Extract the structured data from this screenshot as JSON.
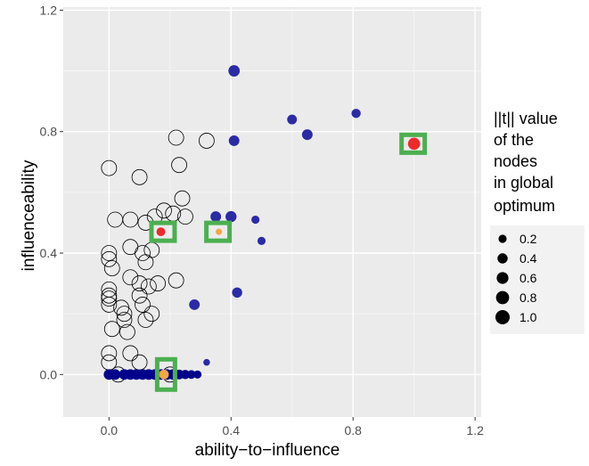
{
  "chart_data": {
    "type": "scatter",
    "xlabel": "ability−to−influence",
    "ylabel": "influenceability",
    "xlim": [
      -0.15,
      1.22
    ],
    "ylim": [
      -0.14,
      1.21
    ],
    "xticks": [
      0.0,
      0.4,
      0.8,
      1.2
    ],
    "xtick_labels": [
      "0.0",
      "0.4",
      "0.8",
      "1.2"
    ],
    "yticks": [
      0.0,
      0.4,
      0.8,
      1.2
    ],
    "ytick_labels": [
      "0.0",
      "0.4",
      "0.8",
      "1.2"
    ],
    "grid": true,
    "panel_background": "#ebebeb",
    "legend": {
      "title_lines": [
        "||t|| value",
        "of the",
        "nodes",
        "in global",
        "optimum"
      ],
      "entries": [
        {
          "label": "0.2",
          "size": 0.2
        },
        {
          "label": "0.4",
          "size": 0.4
        },
        {
          "label": "0.6",
          "size": 0.6
        },
        {
          "label": "0.8",
          "size": 0.8
        },
        {
          "label": "1.0",
          "size": 1.0
        }
      ],
      "placement": "right"
    },
    "colors": {
      "open_circle": "#000000",
      "blue": "#2b2ba6",
      "navy": "#00008b",
      "red": "#ee2a2a",
      "orange": "#f4a742",
      "highlight": "#4caf50"
    },
    "open_points": [
      [
        0.0,
        0.68
      ],
      [
        0.02,
        0.51
      ],
      [
        0.1,
        0.65
      ],
      [
        0.15,
        0.52
      ],
      [
        0.18,
        0.54
      ],
      [
        0.21,
        0.53
      ],
      [
        0.07,
        0.51
      ],
      [
        0.12,
        0.5
      ],
      [
        0.24,
        0.58
      ],
      [
        0.25,
        0.52
      ],
      [
        0.22,
        0.78
      ],
      [
        0.32,
        0.77
      ],
      [
        0.23,
        0.69
      ],
      [
        0.0,
        0.4
      ],
      [
        0.0,
        0.38
      ],
      [
        0.01,
        0.35
      ],
      [
        0.07,
        0.42
      ],
      [
        0.11,
        0.4
      ],
      [
        0.14,
        0.41
      ],
      [
        0.12,
        0.37
      ],
      [
        0.07,
        0.32
      ],
      [
        0.1,
        0.3
      ],
      [
        0.13,
        0.29
      ],
      [
        0.16,
        0.3
      ],
      [
        0.22,
        0.31
      ],
      [
        0.0,
        0.28
      ],
      [
        0.0,
        0.26
      ],
      [
        0.0,
        0.25
      ],
      [
        0.0,
        0.23
      ],
      [
        0.1,
        0.26
      ],
      [
        0.11,
        0.23
      ],
      [
        0.14,
        0.2
      ],
      [
        0.05,
        0.2
      ],
      [
        0.05,
        0.18
      ],
      [
        0.06,
        0.14
      ],
      [
        0.01,
        0.15
      ],
      [
        0.04,
        0.22
      ],
      [
        0.12,
        0.18
      ],
      [
        0.0,
        0.07
      ],
      [
        0.0,
        0.04
      ],
      [
        0.07,
        0.07
      ],
      [
        0.1,
        0.04
      ],
      [
        0.03,
        0.0
      ],
      [
        0.2,
        0.0
      ]
    ],
    "blue_points": [
      {
        "x": 0.41,
        "y": 1.0,
        "size": 0.55
      },
      {
        "x": 0.6,
        "y": 0.84,
        "size": 0.35
      },
      {
        "x": 0.81,
        "y": 0.86,
        "size": 0.3
      },
      {
        "x": 0.65,
        "y": 0.79,
        "size": 0.45
      },
      {
        "x": 0.41,
        "y": 0.77,
        "size": 0.45
      },
      {
        "x": 0.35,
        "y": 0.52,
        "size": 0.45
      },
      {
        "x": 0.4,
        "y": 0.52,
        "size": 0.5
      },
      {
        "x": 0.48,
        "y": 0.51,
        "size": 0.2
      },
      {
        "x": 0.5,
        "y": 0.44,
        "size": 0.2
      },
      {
        "x": 0.42,
        "y": 0.27,
        "size": 0.4
      },
      {
        "x": 0.28,
        "y": 0.23,
        "size": 0.45
      },
      {
        "x": 0.32,
        "y": 0.04,
        "size": 0.1
      }
    ],
    "navy_baseline": {
      "y": 0.0,
      "x": [
        0.0,
        0.02,
        0.05,
        0.07,
        0.09,
        0.11,
        0.13,
        0.15,
        0.17,
        0.19,
        0.21,
        0.23,
        0.25,
        0.27,
        0.29
      ],
      "sizes": [
        0.45,
        0.45,
        0.45,
        0.45,
        0.45,
        0.45,
        0.45,
        0.45,
        0.45,
        0.45,
        0.45,
        0.35,
        0.3,
        0.25,
        0.2
      ]
    },
    "red_points": [
      {
        "x": 1.0,
        "y": 0.76,
        "size": 0.65
      },
      {
        "x": 0.17,
        "y": 0.47,
        "size": 0.25
      }
    ],
    "orange_points": [
      {
        "x": 0.36,
        "y": 0.47,
        "size": 0.08
      },
      {
        "x": 0.18,
        "y": 0.0,
        "size": 0.35
      }
    ],
    "highlight_boxes": [
      {
        "x": 1.0,
        "y": 0.76
      },
      {
        "x": 0.18,
        "y": 0.47
      },
      {
        "x": 0.36,
        "y": 0.47
      },
      {
        "x": 0.19,
        "y": 0.0
      }
    ]
  }
}
